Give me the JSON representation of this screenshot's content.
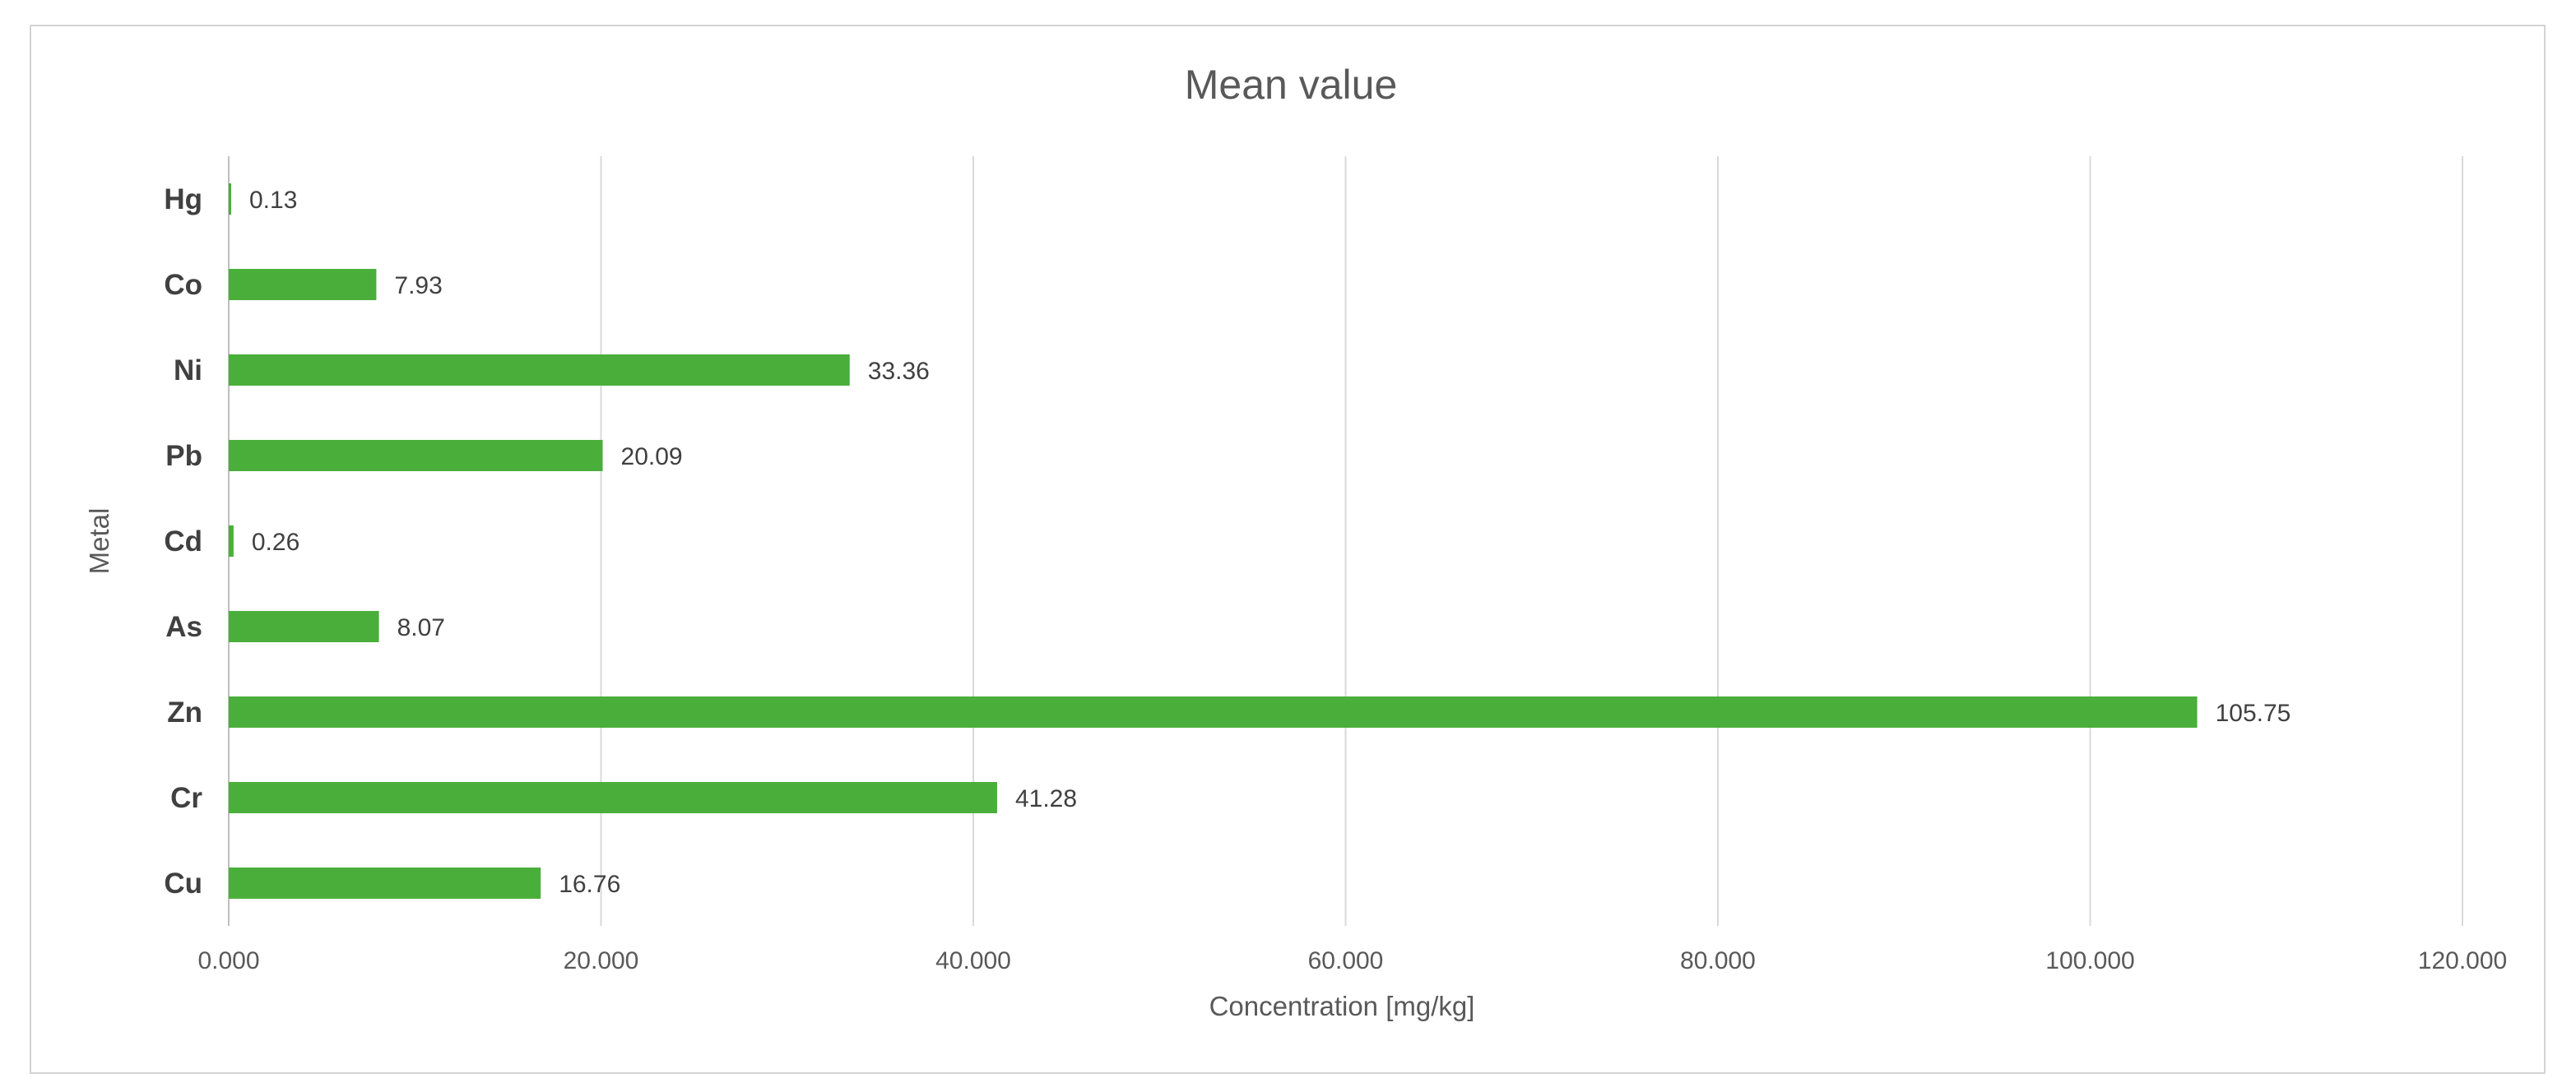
{
  "chart_data": {
    "type": "bar",
    "orientation": "horizontal",
    "title": "Mean value",
    "xlabel": "Concentration [mg/kg]",
    "ylabel": "Metal",
    "categories": [
      "Cu",
      "Cr",
      "Zn",
      "As",
      "Cd",
      "Pb",
      "Ni",
      "Co",
      "Hg"
    ],
    "values": [
      16.76,
      41.28,
      105.75,
      8.07,
      0.26,
      20.09,
      33.36,
      7.93,
      0.13
    ],
    "data_labels": [
      "16.76",
      "41.28",
      "105.75",
      "8.07",
      "0.26",
      "20.09",
      "33.36",
      "7.93",
      "0.13"
    ],
    "xlim": [
      0,
      120
    ],
    "xticks": [
      0,
      20,
      40,
      60,
      80,
      100,
      120
    ],
    "xtick_labels": [
      "0.000",
      "20.000",
      "40.000",
      "60.000",
      "80.000",
      "100.000",
      "120.000"
    ],
    "grid": true,
    "bar_color": "#4aae3a"
  }
}
